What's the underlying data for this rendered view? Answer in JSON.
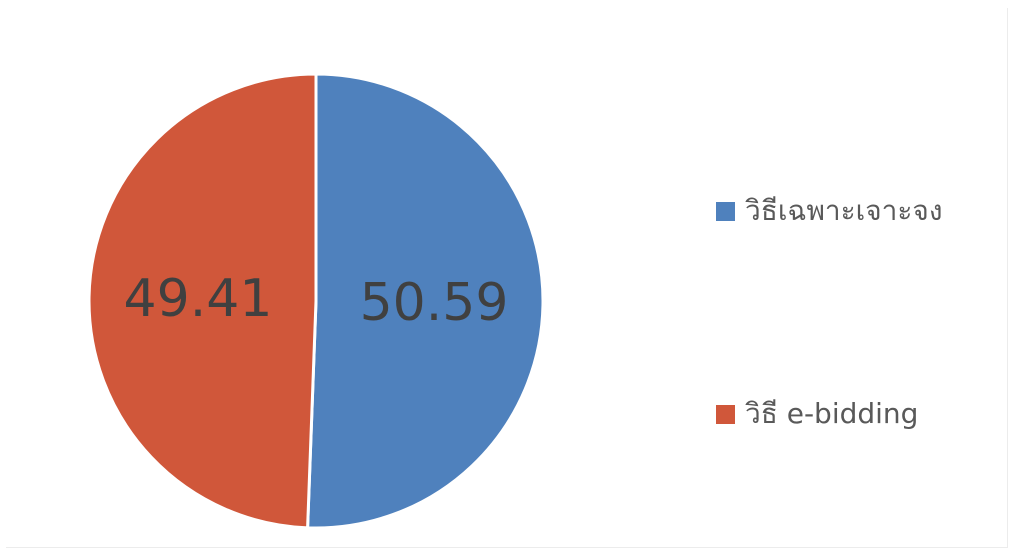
{
  "chart_data": {
    "type": "pie",
    "slices": [
      {
        "name": "วิธีเฉพาะเจาะจง",
        "value": 50.59,
        "label": "50.59",
        "color": "#4f81bd"
      },
      {
        "name": "วิธี e-bidding",
        "value": 49.41,
        "label": "49.41",
        "color": "#d0573a"
      }
    ],
    "start_angle_deg": 0,
    "direction": "clockwise",
    "legend_position": "right",
    "slice_border_color": "#ffffff",
    "label_color": "#404040"
  }
}
